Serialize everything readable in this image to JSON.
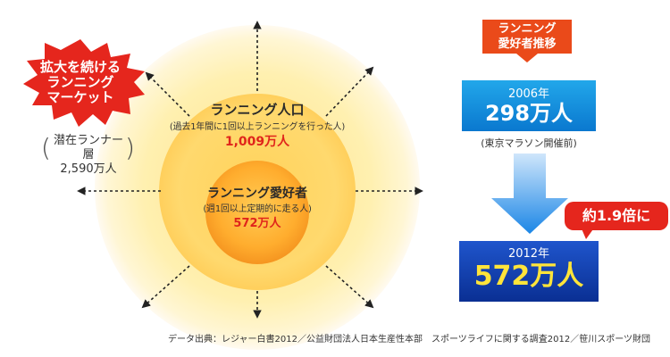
{
  "market_label": {
    "line1": "拡大を続ける",
    "line2": "ランニング",
    "line3": "マーケット"
  },
  "latent_runners": {
    "label": "潜在ランナー層",
    "value": "2,590万人"
  },
  "running_population": {
    "title": "ランニング人口",
    "note": "(過去1年間に1回以上ランニングを行った人)",
    "value": "1,009万人"
  },
  "running_enthusiasts": {
    "title": "ランニング愛好者",
    "note": "(週1回以上定期的に走る人)",
    "value": "572万人"
  },
  "trend": {
    "tag_line1": "ランニング",
    "tag_line2": "愛好者推移",
    "y2006": {
      "year": "2006年",
      "value": "298万人",
      "note": "(東京マラソン開催前)"
    },
    "growth_label": "約1.9倍に",
    "y2012": {
      "year": "2012年",
      "value": "572万人"
    }
  },
  "source": "データ出典：レジャー白書2012／公益財団法人日本生産性本部　スポーツライフに関する調査2012／笹川スポーツ財団",
  "colors": {
    "accent_red": "#e5261d",
    "tag_orange": "#ea4a1a",
    "box_blue_light": "#1a8fe0",
    "box_blue_dark": "#0a2f93",
    "value_yellow": "#ffe43a"
  }
}
